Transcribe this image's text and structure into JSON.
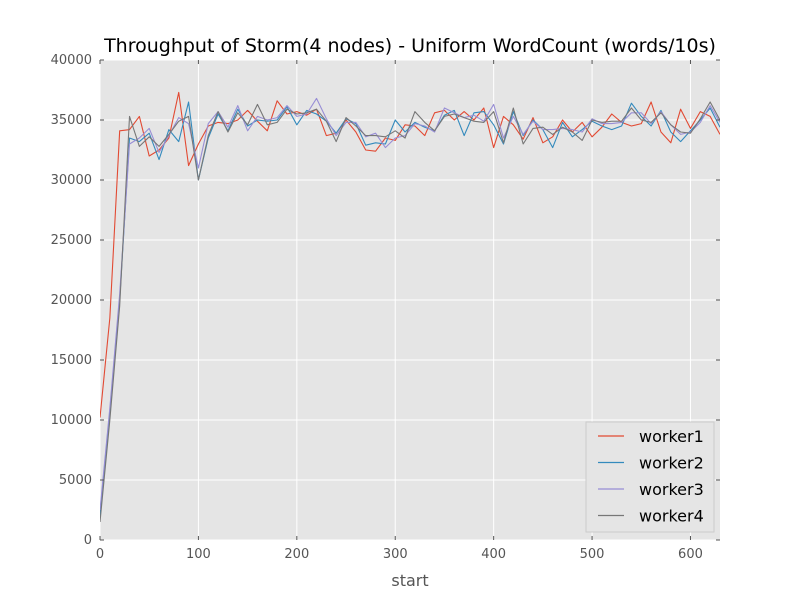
{
  "chart_data": {
    "type": "line",
    "title": "Throughput of Storm(4 nodes) - Uniform WordCount (words/10s)",
    "xlabel": "start",
    "ylabel": "",
    "xlim": [
      0,
      630
    ],
    "ylim": [
      0,
      40000
    ],
    "xticks": [
      "0",
      "100",
      "200",
      "300",
      "400",
      "500",
      "600"
    ],
    "yticks": [
      "0",
      "5000",
      "10000",
      "15000",
      "20000",
      "25000",
      "30000",
      "35000",
      "40000"
    ],
    "grid": true,
    "legend_position": "bottom-right",
    "x": [
      0,
      10,
      20,
      30,
      40,
      50,
      60,
      70,
      80,
      90,
      100,
      110,
      120,
      130,
      140,
      150,
      160,
      170,
      180,
      190,
      200,
      210,
      220,
      230,
      240,
      250,
      260,
      270,
      280,
      290,
      300,
      310,
      320,
      330,
      340,
      350,
      360,
      370,
      380,
      390,
      400,
      410,
      420,
      430,
      440,
      450,
      460,
      470,
      480,
      490,
      500,
      510,
      520,
      530,
      540,
      550,
      560,
      570,
      580,
      590,
      600,
      610,
      620,
      630
    ],
    "series": [
      {
        "name": "worker1",
        "color": "#E24A33",
        "values": [
          10200,
          18500,
          34100,
          34200,
          35300,
          32000,
          32500,
          33500,
          37300,
          31200,
          33000,
          34500,
          34800,
          34700,
          35000,
          35800,
          34900,
          34100,
          36600,
          35500,
          35700,
          35400,
          35900,
          33700,
          33900,
          35000,
          34000,
          32500,
          32400,
          33500,
          33300,
          34600,
          34500,
          33700,
          35600,
          35800,
          35000,
          35700,
          35000,
          36000,
          32700,
          35300,
          34600,
          33400,
          35200,
          33100,
          33600,
          35000,
          34000,
          34800,
          33600,
          34400,
          35500,
          34800,
          34500,
          34700,
          36500,
          34000,
          33100,
          35900,
          34300,
          35700,
          35300,
          33800
        ]
      },
      {
        "name": "worker2",
        "color": "#348ABD",
        "values": [
          2000,
          10500,
          20000,
          33500,
          33200,
          33900,
          31700,
          34200,
          33200,
          36500,
          30000,
          33500,
          35500,
          34100,
          35900,
          34500,
          35000,
          34900,
          35000,
          36100,
          34600,
          35800,
          35500,
          34900,
          33900,
          35100,
          34700,
          32900,
          33100,
          33000,
          35000,
          34000,
          34800,
          34400,
          34100,
          35400,
          35800,
          33700,
          35600,
          35700,
          34600,
          33000,
          35700,
          33700,
          35000,
          34200,
          32700,
          34800,
          33600,
          34200,
          34900,
          34500,
          34200,
          34500,
          36400,
          35300,
          34500,
          35800,
          34000,
          33200,
          34100,
          35000,
          36000,
          34400
        ]
      },
      {
        "name": "worker3",
        "color": "#988ED5",
        "values": [
          2500,
          11000,
          20500,
          33000,
          33500,
          34300,
          32300,
          33700,
          35200,
          34700,
          31000,
          34700,
          35700,
          34400,
          36200,
          34100,
          35300,
          35000,
          35200,
          36200,
          35300,
          35500,
          36800,
          35100,
          33700,
          34800,
          34800,
          33600,
          33900,
          32700,
          33500,
          33700,
          34700,
          34500,
          34000,
          36000,
          35600,
          35200,
          35400,
          34900,
          36300,
          33500,
          35300,
          33800,
          34900,
          34200,
          34200,
          34300,
          34200,
          34000,
          35100,
          34700,
          34700,
          34800,
          35600,
          35600,
          34700,
          35700,
          34600,
          33800,
          34000,
          34800,
          36200,
          34800
        ]
      },
      {
        "name": "worker4",
        "color": "#777777",
        "values": [
          1500,
          10000,
          19500,
          35300,
          32800,
          33600,
          32800,
          33800,
          34900,
          35300,
          30000,
          33700,
          35700,
          34000,
          35600,
          34600,
          36300,
          34600,
          34800,
          35900,
          35500,
          35600,
          35900,
          34900,
          33200,
          35200,
          34500,
          33700,
          33700,
          33600,
          34100,
          33500,
          35700,
          34800,
          34100,
          35300,
          35500,
          35200,
          34900,
          34800,
          35700,
          33100,
          36000,
          33000,
          34300,
          34400,
          33800,
          34400,
          34000,
          33300,
          35000,
          34800,
          34900,
          34900,
          36000,
          35000,
          34800,
          35600,
          34600,
          34000,
          33900,
          35100,
          36500,
          35000
        ]
      }
    ]
  }
}
